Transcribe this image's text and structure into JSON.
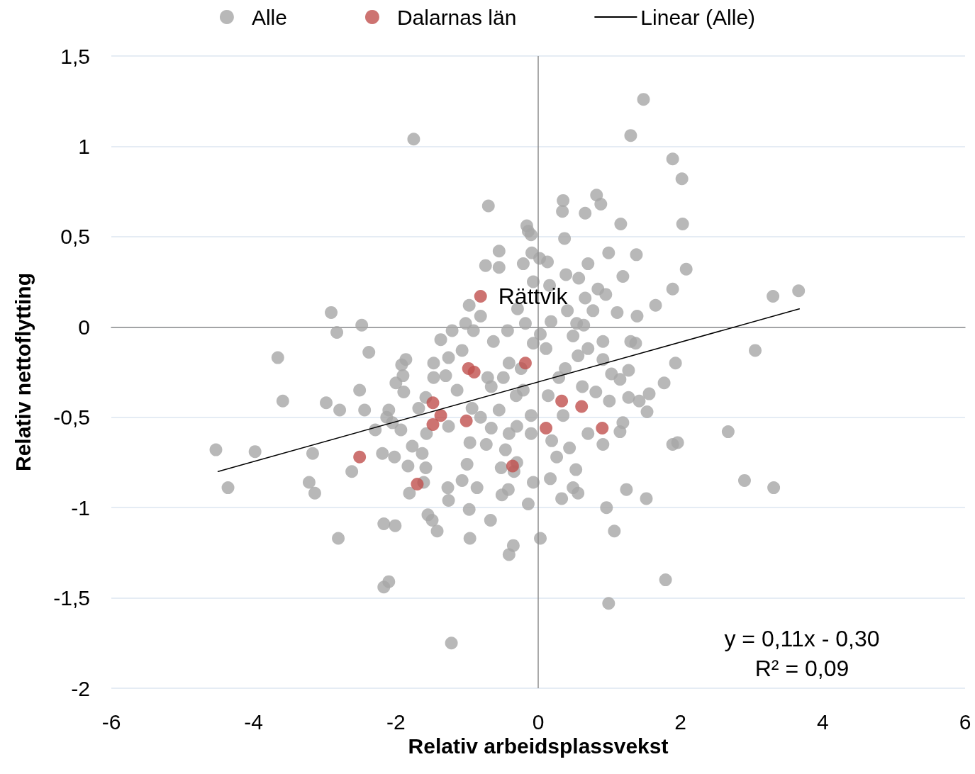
{
  "chart_data": {
    "type": "scatter",
    "xlabel": "Relativ arbeidsplassvekst",
    "ylabel": "Relativ nettoflytting",
    "xlim": [
      -6,
      6
    ],
    "xticks": [
      -6,
      -4,
      -2,
      0,
      2,
      4,
      6
    ],
    "ylim": [
      -2,
      1.5
    ],
    "yticks": [
      -2,
      {
        "value": -1.5,
        "label": "-1,5"
      },
      -1,
      {
        "value": -0.5,
        "label": "-0,5"
      },
      0,
      {
        "value": 0.5,
        "label": "0,5"
      },
      1,
      {
        "value": 1.5,
        "label": "1,5"
      }
    ],
    "grid": "y",
    "legend": "top",
    "ref_lines": [
      {
        "axis": "x",
        "value": 0,
        "color": "#8c8c8c"
      }
    ],
    "marker": "circle",
    "annotations": [
      {
        "text": "Rättvik",
        "x": -0.81,
        "y": 0.17
      },
      "y = 0,11x - 0,30",
      "R² = 0,09"
    ],
    "series": [
      {
        "name": "Alle",
        "color": "#a6a6a6",
        "x": [
          1.48,
          1.3,
          -1.75,
          1.89,
          2.02,
          0.35,
          0.82,
          0.88,
          -0.7,
          0.34,
          0.66,
          -0.16,
          1.16,
          2.03,
          -0.14,
          -0.1,
          0.37,
          -0.55,
          0.99,
          1.38,
          -0.09,
          0.02,
          -0.21,
          0.13,
          -0.74,
          -0.55,
          0.7,
          2.08,
          0.39,
          1.19,
          0.57,
          -0.07,
          0.16,
          0.84,
          1.89,
          3.66,
          3.3,
          0.95,
          0.66,
          -0.97,
          -0.29,
          0.41,
          0.77,
          1.11,
          1.39,
          1.65,
          -2.91,
          -0.81,
          -0.18,
          -1.02,
          0.18,
          0.54,
          0.64,
          -2.48,
          -2.83,
          -1.21,
          -0.91,
          -0.43,
          0.03,
          0.49,
          -1.37,
          -0.63,
          -0.07,
          0.91,
          1.3,
          1.37,
          -2.38,
          -1.07,
          0.11,
          0.7,
          3.05,
          -3.66,
          0.56,
          0.91,
          1.93,
          -1.86,
          -1.92,
          -1.47,
          -1.26,
          -0.41,
          -0.24,
          0.38,
          1.27,
          1.03,
          -1.47,
          -1.3,
          -1.9,
          -2.0,
          -0.71,
          -0.49,
          0.29,
          1.15,
          1.77,
          0.62,
          -1.14,
          -0.66,
          -0.21,
          -2.51,
          -1.89,
          0.81,
          1.56,
          -1.58,
          -0.31,
          0.14,
          1.0,
          1.27,
          1.42,
          -3.59,
          -2.98,
          -0.93,
          -1.68,
          -2.79,
          -2.44,
          -2.1,
          -0.55,
          1.53,
          0.35,
          -2.13,
          -0.81,
          -0.1,
          -2.05,
          -0.3,
          1.19,
          -1.26,
          -2.29,
          -1.93,
          2.67,
          -0.66,
          -1.57,
          -0.41,
          0.7,
          1.15,
          -0.1,
          -0.96,
          0.19,
          -0.73,
          0.91,
          1.89,
          1.96,
          -1.77,
          0.44,
          -0.46,
          -4.53,
          -3.98,
          -3.17,
          -2.19,
          -1.63,
          -2.02,
          0.26,
          -0.3,
          -1.0,
          -1.83,
          -1.58,
          -0.52,
          0.53,
          -2.62,
          -0.34,
          -1.07,
          0.17,
          -0.07,
          -3.22,
          -1.61,
          2.9,
          -4.36,
          -1.27,
          -0.86,
          -0.42,
          0.49,
          1.24,
          3.31,
          -3.14,
          -1.81,
          0.56,
          -0.51,
          -1.26,
          0.33,
          1.52,
          -0.14,
          0.96,
          -0.97,
          -1.55,
          -1.49,
          -0.67,
          -2.17,
          -2.01,
          -1.42,
          1.07,
          -2.81,
          -0.96,
          0.03,
          -0.35,
          -0.41,
          1.79,
          -2.1,
          -2.17,
          0.99,
          -1.22
        ],
        "values": [
          1.26,
          1.06,
          1.04,
          0.93,
          0.82,
          0.7,
          0.73,
          0.68,
          0.67,
          0.64,
          0.63,
          0.56,
          0.57,
          0.57,
          0.53,
          0.51,
          0.49,
          0.42,
          0.41,
          0.4,
          0.41,
          0.38,
          0.35,
          0.36,
          0.34,
          0.33,
          0.35,
          0.32,
          0.29,
          0.28,
          0.27,
          0.25,
          0.23,
          0.21,
          0.21,
          0.2,
          0.17,
          0.18,
          0.16,
          0.12,
          0.1,
          0.09,
          0.09,
          0.08,
          0.06,
          0.12,
          0.08,
          0.06,
          0.02,
          0.02,
          0.03,
          0.02,
          0.01,
          0.01,
          -0.03,
          -0.02,
          -0.02,
          -0.02,
          -0.04,
          -0.05,
          -0.07,
          -0.08,
          -0.09,
          -0.08,
          -0.08,
          -0.09,
          -0.14,
          -0.13,
          -0.12,
          -0.12,
          -0.13,
          -0.17,
          -0.16,
          -0.18,
          -0.2,
          -0.18,
          -0.21,
          -0.2,
          -0.17,
          -0.2,
          -0.23,
          -0.23,
          -0.24,
          -0.26,
          -0.28,
          -0.27,
          -0.27,
          -0.31,
          -0.28,
          -0.28,
          -0.28,
          -0.29,
          -0.31,
          -0.33,
          -0.35,
          -0.33,
          -0.35,
          -0.35,
          -0.36,
          -0.36,
          -0.37,
          -0.39,
          -0.38,
          -0.38,
          -0.41,
          -0.39,
          -0.41,
          -0.41,
          -0.42,
          -0.45,
          -0.45,
          -0.46,
          -0.46,
          -0.46,
          -0.46,
          -0.47,
          -0.49,
          -0.5,
          -0.5,
          -0.49,
          -0.53,
          -0.55,
          -0.53,
          -0.55,
          -0.57,
          -0.57,
          -0.58,
          -0.56,
          -0.59,
          -0.59,
          -0.59,
          -0.58,
          -0.59,
          -0.64,
          -0.63,
          -0.65,
          -0.65,
          -0.65,
          -0.64,
          -0.66,
          -0.67,
          -0.68,
          -0.68,
          -0.69,
          -0.7,
          -0.7,
          -0.7,
          -0.72,
          -0.72,
          -0.75,
          -0.76,
          -0.77,
          -0.78,
          -0.78,
          -0.79,
          -0.8,
          -0.8,
          -0.85,
          -0.84,
          -0.86,
          -0.86,
          -0.86,
          -0.85,
          -0.89,
          -0.89,
          -0.89,
          -0.9,
          -0.89,
          -0.9,
          -0.89,
          -0.92,
          -0.92,
          -0.92,
          -0.93,
          -0.96,
          -0.95,
          -0.95,
          -0.98,
          -1.0,
          -1.01,
          -1.04,
          -1.07,
          -1.07,
          -1.09,
          -1.1,
          -1.13,
          -1.13,
          -1.17,
          -1.17,
          -1.17,
          -1.21,
          -1.26,
          -1.4,
          -1.41,
          -1.44,
          -1.53,
          -1.75
        ]
      },
      {
        "name": "Dalarnas län",
        "color": "#c0504d",
        "x": [
          -0.81,
          -0.98,
          -0.9,
          -0.18,
          -1.48,
          -1.37,
          -1.48,
          -1.01,
          0.11,
          0.33,
          0.61,
          0.9,
          -2.51,
          -1.7,
          -0.36
        ],
        "values": [
          0.17,
          -0.23,
          -0.25,
          -0.2,
          -0.42,
          -0.49,
          -0.54,
          -0.52,
          -0.56,
          -0.41,
          -0.44,
          -0.56,
          -0.72,
          -0.87,
          -0.77
        ]
      },
      {
        "name": "Linear (Alle)",
        "type": "line",
        "color": "#000000",
        "marker": "none",
        "x": [
          -4.5,
          3.67
        ],
        "values": [
          -0.8,
          0.1
        ]
      }
    ]
  }
}
